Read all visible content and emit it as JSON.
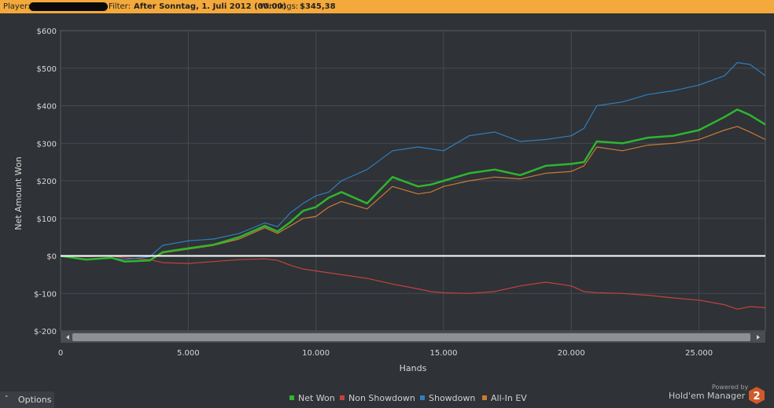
{
  "header": {
    "player_label": "Player:",
    "filter_label": "Filter:",
    "filter_value": "After Sonntag, 1. Juli 2012 (00:00)",
    "winnings_label": "Winnings:",
    "winnings_value": "$345,38"
  },
  "footer": {
    "options_label": "Options",
    "powered_by": "Powered by",
    "brand": "Hold'em Manager",
    "brand_badge": "2"
  },
  "colors": {
    "net_won": "#2fb52f",
    "non_showdown": "#c0443d",
    "showdown": "#2f7fc0",
    "allin_ev": "#cc7a35",
    "zero_line": "#ffffff"
  },
  "chart_data": {
    "type": "line",
    "xlabel": "Hands",
    "ylabel": "Net Amount Won",
    "xlim": [
      0,
      27600
    ],
    "ylim": [
      -200,
      600
    ],
    "x_ticks": [
      "0",
      "5.000",
      "10.000",
      "15.000",
      "20.000",
      "25.000"
    ],
    "y_ticks": [
      "$600",
      "$500",
      "$400",
      "$300",
      "$200",
      "$100",
      "$0",
      "$-100",
      "$-200"
    ],
    "legend": "bottom-center",
    "grid": true,
    "x": [
      0,
      1000,
      2000,
      2500,
      3500,
      4000,
      5000,
      6000,
      7000,
      8000,
      8500,
      9000,
      9500,
      10000,
      10500,
      11000,
      12000,
      13000,
      14000,
      14500,
      15000,
      16000,
      17000,
      18000,
      19000,
      20000,
      20500,
      21000,
      22000,
      23000,
      24000,
      25000,
      26000,
      26500,
      27000,
      27600
    ],
    "series": [
      {
        "name": "Net Won",
        "values": [
          0,
          -10,
          -5,
          -15,
          -12,
          10,
          20,
          30,
          50,
          80,
          65,
          90,
          120,
          130,
          155,
          170,
          140,
          210,
          185,
          190,
          200,
          220,
          230,
          215,
          240,
          245,
          250,
          305,
          300,
          315,
          320,
          335,
          370,
          390,
          375,
          350
        ]
      },
      {
        "name": "Non Showdown",
        "values": [
          0,
          -2,
          0,
          -5,
          -10,
          -18,
          -20,
          -15,
          -10,
          -8,
          -12,
          -25,
          -35,
          -40,
          -45,
          -50,
          -60,
          -75,
          -88,
          -95,
          -98,
          -100,
          -95,
          -80,
          -70,
          -80,
          -95,
          -98,
          -100,
          -105,
          -112,
          -118,
          -130,
          -142,
          -135,
          -138
        ]
      },
      {
        "name": "Showdown",
        "values": [
          0,
          -8,
          -5,
          -10,
          -2,
          28,
          40,
          45,
          60,
          88,
          78,
          115,
          140,
          160,
          170,
          200,
          230,
          280,
          290,
          285,
          280,
          320,
          330,
          305,
          310,
          320,
          340,
          400,
          410,
          430,
          440,
          455,
          480,
          515,
          510,
          480
        ]
      },
      {
        "name": "All-In EV",
        "values": [
          0,
          -10,
          -5,
          -15,
          -12,
          8,
          18,
          28,
          45,
          75,
          60,
          80,
          100,
          105,
          130,
          145,
          125,
          185,
          165,
          170,
          185,
          200,
          210,
          205,
          220,
          225,
          240,
          290,
          280,
          295,
          300,
          310,
          335,
          345,
          330,
          310
        ]
      }
    ]
  }
}
